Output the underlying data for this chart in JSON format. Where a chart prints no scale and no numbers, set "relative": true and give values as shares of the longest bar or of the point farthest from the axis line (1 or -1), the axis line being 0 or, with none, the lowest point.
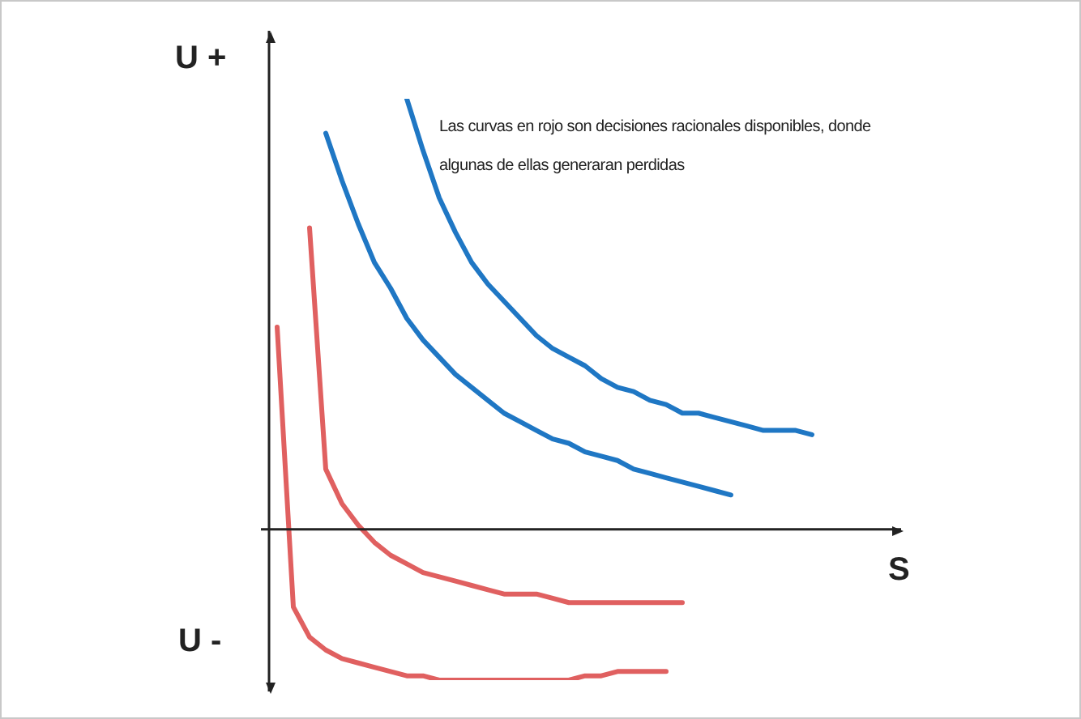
{
  "chart_data": {
    "type": "line",
    "relative": true,
    "ylabel": "U +",
    "xlabel": "S",
    "annotations": [
      "U -",
      "Las curvas en rojo son decisiones racionales disponibles, donde algunas de ellas generaran perdidas"
    ],
    "legend": false,
    "marker": "none",
    "line_style": "solid",
    "categories": [
      null,
      null,
      null,
      null,
      null,
      null,
      null,
      null,
      null,
      null,
      null,
      null,
      null,
      null,
      null,
      null,
      null,
      null,
      null,
      null,
      null,
      null,
      null,
      null,
      null,
      null,
      null,
      null,
      null,
      null,
      null,
      null,
      null,
      null,
      null,
      null,
      null,
      null,
      null
    ],
    "series": [
      {
        "color": "#1f77c4",
        "values": [
          null,
          null,
          null,
          null,
          null,
          null,
          null,
          null,
          1.0,
          0.88,
          0.77,
          0.69,
          0.62,
          0.57,
          0.53,
          0.49,
          0.45,
          0.42,
          0.4,
          0.38,
          0.35,
          0.33,
          0.32,
          0.3,
          0.29,
          0.27,
          0.27,
          0.26,
          0.25,
          0.24,
          0.23,
          0.23,
          0.23,
          0.22,
          null,
          null,
          null,
          null,
          null
        ]
      },
      {
        "color": "#1f77c4",
        "values": [
          null,
          null,
          null,
          0.92,
          0.81,
          0.71,
          0.62,
          0.56,
          0.49,
          0.44,
          0.4,
          0.36,
          0.33,
          0.3,
          0.27,
          0.25,
          0.23,
          0.21,
          0.2,
          0.18,
          0.17,
          0.16,
          0.14,
          0.13,
          0.12,
          0.11,
          0.1,
          0.09,
          0.08,
          null,
          null,
          null,
          null,
          null,
          null,
          null,
          null,
          null,
          null
        ]
      },
      {
        "color": "#e06060",
        "values": [
          null,
          null,
          0.7,
          0.14,
          0.06,
          0.01,
          -0.03,
          -0.06,
          -0.08,
          -0.1,
          -0.11,
          -0.12,
          -0.13,
          -0.14,
          -0.15,
          -0.15,
          -0.15,
          -0.16,
          -0.17,
          -0.17,
          -0.17,
          -0.17,
          -0.17,
          -0.17,
          -0.17,
          -0.17,
          null,
          null,
          null,
          null,
          null,
          null,
          null,
          null,
          null,
          null,
          null,
          null,
          null
        ]
      },
      {
        "color": "#e06060",
        "values": [
          0.47,
          -0.18,
          -0.25,
          -0.28,
          -0.3,
          -0.31,
          -0.32,
          -0.33,
          -0.34,
          -0.34,
          -0.35,
          -0.35,
          -0.35,
          -0.35,
          -0.35,
          -0.35,
          -0.35,
          -0.35,
          -0.35,
          -0.34,
          -0.34,
          -0.33,
          -0.33,
          -0.33,
          -0.33,
          null,
          null,
          null,
          null,
          null,
          null,
          null,
          null,
          null,
          null,
          null,
          null,
          null,
          null
        ]
      }
    ]
  }
}
